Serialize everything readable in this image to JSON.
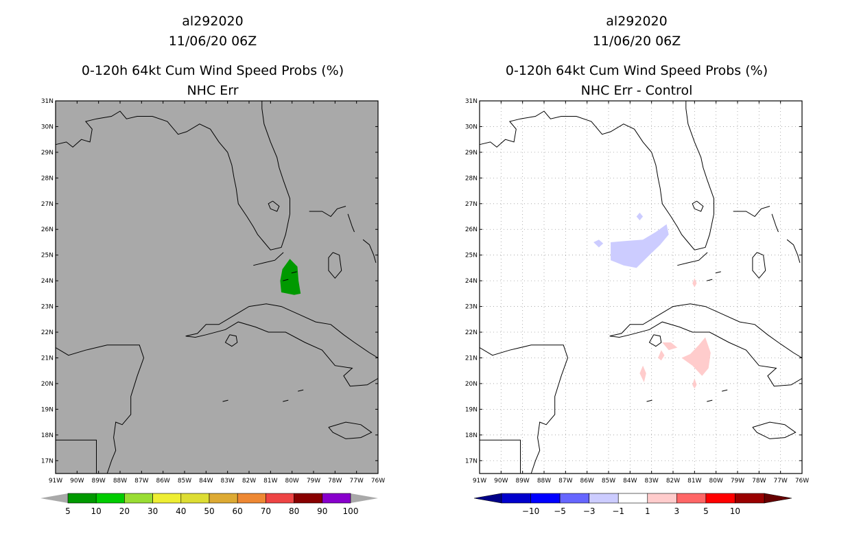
{
  "left_panel": {
    "storm_id": "al292020",
    "datetime": "11/06/20 06Z",
    "title": "0-120h 64kt Cum Wind Speed Probs (%)",
    "subtitle": "NHC Err",
    "background_color": "#a9a9a9",
    "colorbar": {
      "colors": [
        "#009900",
        "#00cc00",
        "#99dd33",
        "#eeee33",
        "#dddd33",
        "#ddaa33",
        "#ee8833",
        "#ee4444",
        "#880000",
        "#8800cc"
      ],
      "labels": [
        "5",
        "10",
        "20",
        "30",
        "40",
        "50",
        "60",
        "70",
        "80",
        "90",
        "100"
      ],
      "end_color": "#a9a9a9"
    }
  },
  "right_panel": {
    "storm_id": "al292020",
    "datetime": "11/06/20 06Z",
    "title": "0-120h 64kt Cum Wind Speed Probs (%)",
    "subtitle": "NHC Err - Control",
    "background_color": "#ffffff",
    "colorbar": {
      "colors": [
        "#0000cc",
        "#0000ff",
        "#6666ff",
        "#ccccff",
        "#ffffff",
        "#ffcccc",
        "#ff6666",
        "#ff0000",
        "#990000"
      ],
      "labels": [
        "-10",
        "-5",
        "-3",
        "-1",
        "1",
        "3",
        "5",
        "10"
      ],
      "low_end_color": "#000088",
      "high_end_color": "#660000"
    }
  },
  "axes": {
    "lat_labels": [
      "31N",
      "30N",
      "29N",
      "28N",
      "27N",
      "26N",
      "25N",
      "24N",
      "23N",
      "22N",
      "21N",
      "20N",
      "19N",
      "18N",
      "17N"
    ],
    "lon_labels": [
      "91W",
      "90W",
      "89W",
      "88W",
      "87W",
      "86W",
      "85W",
      "84W",
      "83W",
      "82W",
      "81W",
      "80W",
      "79W",
      "78W",
      "77W",
      "76W"
    ]
  }
}
